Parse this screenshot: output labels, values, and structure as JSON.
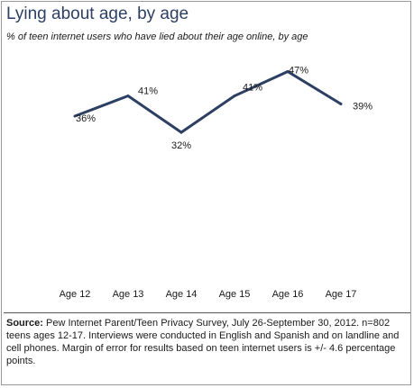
{
  "chart_data": {
    "type": "line",
    "title": "Lying about age, by age",
    "subtitle": "% of teen internet users who have lied about their age online, by age",
    "categories": [
      "Age 12",
      "Age 13",
      "Age 14",
      "Age 15",
      "Age 16",
      "Age 17"
    ],
    "series": [
      {
        "values": [
          36,
          41,
          32,
          41,
          47,
          39
        ]
      }
    ],
    "data_labels": [
      "36%",
      "41%",
      "32%",
      "41%",
      "47%",
      "39%"
    ],
    "xlabel": "",
    "ylabel": "",
    "ylim": [
      30,
      48
    ],
    "grid": false,
    "line_color": "#2d3f63"
  },
  "source": {
    "label": "Source:",
    "text": " Pew Internet Parent/Teen Privacy Survey, July 26-September 30, 2012. n=802 teens ages 12-17.  Interviews were conducted in English and Spanish and on landline and cell phones.  Margin of error for results based on teen internet users is +/- 4.6 percentage points."
  }
}
